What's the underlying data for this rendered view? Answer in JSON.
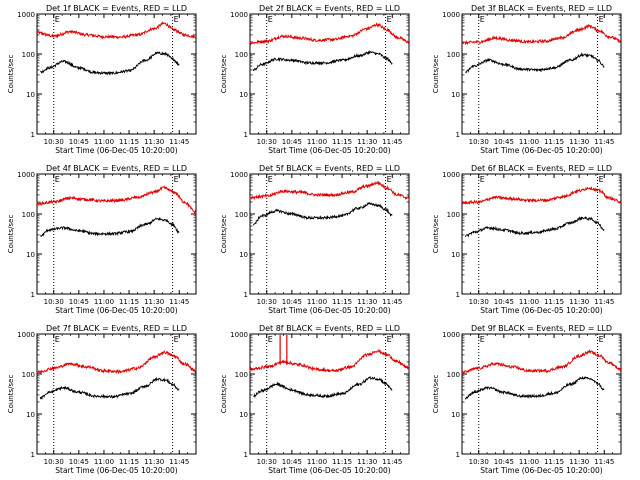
{
  "figure": {
    "xlabel": "Start Time (06-Dec-05 10:20:00)",
    "ylabel": "Counts/sec",
    "marker_label": "E",
    "colors": {
      "events": "#000000",
      "lld": "#e00000",
      "frame": "#000000",
      "background": "#ffffff"
    }
  },
  "chart_data": [
    {
      "type": "line",
      "title": "Det 1f BLACK = Events, RED = LLD",
      "xlabel": "Start Time (06-Dec-05 10:20:00)",
      "ylabel": "Counts/sec",
      "yscale": "log",
      "ylim": [
        1,
        1000
      ],
      "xlim": [
        "10:20",
        "11:55"
      ],
      "xticks": [
        "10:30",
        "10:45",
        "11:00",
        "11:15",
        "11:30",
        "11:45"
      ],
      "yticks": [
        "1",
        "10",
        "100",
        "1000"
      ],
      "markers": {
        "vlines": [
          "10:30",
          "11:41"
        ],
        "label": "E"
      },
      "series": [
        {
          "color": "#e00000",
          "x": [
            "10:20",
            "10:30",
            "10:40",
            "10:50",
            "11:00",
            "11:10",
            "11:20",
            "11:30",
            "11:36",
            "11:42",
            "11:48",
            "11:55"
          ],
          "values": [
            340,
            280,
            360,
            300,
            270,
            265,
            300,
            430,
            580,
            400,
            300,
            270
          ]
        },
        {
          "color": "#000000",
          "x": [
            "10:22",
            "10:27",
            "10:36",
            "10:45",
            "10:55",
            "11:05",
            "11:15",
            "11:25",
            "11:32",
            "11:37",
            "11:41",
            "11:45"
          ],
          "values": [
            35,
            45,
            65,
            45,
            34,
            33,
            38,
            70,
            105,
            100,
            75,
            55
          ]
        }
      ]
    },
    {
      "type": "line",
      "title": "Det 2f BLACK = Events, RED = LLD",
      "xlabel": "Start Time (06-Dec-05 10:20:00)",
      "ylabel": "Counts/sec",
      "yscale": "log",
      "ylim": [
        1,
        1000
      ],
      "xlim": [
        "10:20",
        "11:55"
      ],
      "xticks": [
        "10:30",
        "10:45",
        "11:00",
        "11:15",
        "11:30",
        "11:45"
      ],
      "yticks": [
        "1",
        "10",
        "100",
        "1000"
      ],
      "markers": {
        "vlines": [
          "10:30",
          "11:41"
        ],
        "label": "E"
      },
      "series": [
        {
          "color": "#e00000",
          "x": [
            "10:20",
            "10:30",
            "10:40",
            "10:50",
            "11:00",
            "11:10",
            "11:20",
            "11:30",
            "11:36",
            "11:42",
            "11:48",
            "11:55"
          ],
          "values": [
            190,
            210,
            280,
            250,
            220,
            230,
            280,
            430,
            540,
            400,
            260,
            200
          ]
        },
        {
          "color": "#000000",
          "x": [
            "10:22",
            "10:27",
            "10:36",
            "10:45",
            "10:55",
            "11:05",
            "11:15",
            "11:25",
            "11:32",
            "11:37",
            "11:41",
            "11:45"
          ],
          "values": [
            40,
            55,
            75,
            70,
            60,
            60,
            70,
            90,
            110,
            100,
            80,
            60
          ]
        }
      ]
    },
    {
      "type": "line",
      "title": "Det 3f BLACK = Events, RED = LLD",
      "xlabel": "Start Time (06-Dec-05 10:20:00)",
      "ylabel": "Counts/sec",
      "yscale": "log",
      "ylim": [
        1,
        1000
      ],
      "xlim": [
        "10:20",
        "11:55"
      ],
      "xticks": [
        "10:30",
        "10:45",
        "11:00",
        "11:15",
        "11:30",
        "11:45"
      ],
      "yticks": [
        "1",
        "10",
        "100",
        "1000"
      ],
      "markers": {
        "vlines": [
          "10:30",
          "11:41"
        ],
        "label": "E"
      },
      "series": [
        {
          "color": "#e00000",
          "x": [
            "10:20",
            "10:30",
            "10:40",
            "10:50",
            "11:00",
            "11:10",
            "11:20",
            "11:30",
            "11:36",
            "11:42",
            "11:48",
            "11:55"
          ],
          "values": [
            190,
            200,
            250,
            220,
            200,
            210,
            260,
            400,
            500,
            380,
            270,
            210
          ]
        },
        {
          "color": "#000000",
          "x": [
            "10:22",
            "10:27",
            "10:36",
            "10:45",
            "10:55",
            "11:05",
            "11:15",
            "11:25",
            "11:32",
            "11:37",
            "11:41",
            "11:45"
          ],
          "values": [
            35,
            50,
            70,
            55,
            42,
            40,
            45,
            70,
            95,
            90,
            70,
            50
          ]
        }
      ]
    },
    {
      "type": "line",
      "title": "Det 4f BLACK = Events, RED = LLD",
      "xlabel": "Start Time (06-Dec-05 10:20:00)",
      "ylabel": "Counts/sec",
      "yscale": "log",
      "ylim": [
        1,
        1000
      ],
      "xlim": [
        "10:20",
        "11:55"
      ],
      "xticks": [
        "10:30",
        "10:45",
        "11:00",
        "11:15",
        "11:30",
        "11:45"
      ],
      "yticks": [
        "1",
        "10",
        "100",
        "1000"
      ],
      "markers": {
        "vlines": [
          "10:30",
          "11:41"
        ],
        "label": "E"
      },
      "series": [
        {
          "color": "#e00000",
          "x": [
            "10:20",
            "10:30",
            "10:40",
            "10:50",
            "11:00",
            "11:10",
            "11:20",
            "11:30",
            "11:36",
            "11:42",
            "11:48",
            "11:55"
          ],
          "values": [
            180,
            200,
            250,
            230,
            210,
            220,
            260,
            350,
            450,
            350,
            200,
            110
          ]
        },
        {
          "color": "#000000",
          "x": [
            "10:22",
            "10:27",
            "10:36",
            "10:45",
            "10:55",
            "11:05",
            "11:15",
            "11:25",
            "11:32",
            "11:37",
            "11:41",
            "11:45"
          ],
          "values": [
            28,
            40,
            45,
            38,
            32,
            32,
            36,
            55,
            75,
            70,
            55,
            35
          ]
        }
      ]
    },
    {
      "type": "line",
      "title": "Det 5f BLACK = Events, RED = LLD",
      "xlabel": "Start Time (06-Dec-05 10:20:00)",
      "ylabel": "Counts/sec",
      "yscale": "log",
      "ylim": [
        1,
        1000
      ],
      "xlim": [
        "10:20",
        "11:55"
      ],
      "xticks": [
        "10:30",
        "10:45",
        "11:00",
        "11:15",
        "11:30",
        "11:45"
      ],
      "yticks": [
        "1",
        "10",
        "100",
        "1000"
      ],
      "markers": {
        "vlines": [
          "10:30",
          "11:41"
        ],
        "label": "E"
      },
      "series": [
        {
          "color": "#e00000",
          "x": [
            "10:20",
            "10:30",
            "10:40",
            "10:50",
            "11:00",
            "11:10",
            "11:20",
            "11:30",
            "11:36",
            "11:42",
            "11:48",
            "11:55"
          ],
          "values": [
            260,
            280,
            370,
            350,
            300,
            300,
            350,
            500,
            600,
            450,
            300,
            250
          ]
        },
        {
          "color": "#000000",
          "x": [
            "10:22",
            "10:27",
            "10:36",
            "10:45",
            "10:55",
            "11:05",
            "11:15",
            "11:25",
            "11:32",
            "11:37",
            "11:41",
            "11:45"
          ],
          "values": [
            55,
            90,
            120,
            100,
            80,
            80,
            90,
            140,
            180,
            160,
            130,
            90
          ]
        }
      ]
    },
    {
      "type": "line",
      "title": "Det 6f BLACK = Events, RED = LLD",
      "xlabel": "Start Time (06-Dec-05 10:20:00)",
      "ylabel": "Counts/sec",
      "yscale": "log",
      "ylim": [
        1,
        1000
      ],
      "xlim": [
        "10:20",
        "11:55"
      ],
      "xticks": [
        "10:30",
        "10:45",
        "11:00",
        "11:15",
        "11:30",
        "11:45"
      ],
      "yticks": [
        "1",
        "10",
        "100",
        "1000"
      ],
      "markers": {
        "vlines": [
          "10:30",
          "11:41"
        ],
        "label": "E"
      },
      "series": [
        {
          "color": "#e00000",
          "x": [
            "10:20",
            "10:30",
            "10:40",
            "10:50",
            "11:00",
            "11:10",
            "11:20",
            "11:30",
            "11:36",
            "11:42",
            "11:48",
            "11:55"
          ],
          "values": [
            190,
            200,
            260,
            240,
            220,
            220,
            270,
            380,
            450,
            380,
            250,
            200
          ]
        },
        {
          "color": "#000000",
          "x": [
            "10:22",
            "10:27",
            "10:36",
            "10:45",
            "10:55",
            "11:05",
            "11:15",
            "11:25",
            "11:32",
            "11:37",
            "11:41",
            "11:45"
          ],
          "values": [
            28,
            35,
            45,
            40,
            33,
            35,
            42,
            60,
            80,
            75,
            60,
            40
          ]
        }
      ]
    },
    {
      "type": "line",
      "title": "Det 7f BLACK = Events, RED = LLD",
      "xlabel": "Start Time (06-Dec-05 10:20:00)",
      "ylabel": "Counts/sec",
      "yscale": "log",
      "ylim": [
        1,
        1000
      ],
      "xlim": [
        "10:20",
        "11:55"
      ],
      "xticks": [
        "10:30",
        "10:45",
        "11:00",
        "11:15",
        "11:30",
        "11:45"
      ],
      "yticks": [
        "1",
        "10",
        "100",
        "1000"
      ],
      "markers": {
        "vlines": [
          "10:30",
          "11:41"
        ],
        "label": "E"
      },
      "series": [
        {
          "color": "#e00000",
          "x": [
            "10:20",
            "10:30",
            "10:40",
            "10:50",
            "11:00",
            "11:10",
            "11:20",
            "11:30",
            "11:36",
            "11:42",
            "11:48",
            "11:55"
          ],
          "values": [
            110,
            140,
            180,
            150,
            120,
            115,
            140,
            260,
            350,
            280,
            180,
            120
          ]
        },
        {
          "color": "#000000",
          "x": [
            "10:22",
            "10:27",
            "10:36",
            "10:45",
            "10:55",
            "11:05",
            "11:15",
            "11:25",
            "11:32",
            "11:37",
            "11:41",
            "11:45"
          ],
          "values": [
            25,
            35,
            45,
            35,
            28,
            27,
            32,
            50,
            75,
            70,
            55,
            40
          ]
        }
      ]
    },
    {
      "type": "line",
      "title": "Det 8f BLACK = Events, RED = LLD",
      "xlabel": "Start Time (06-Dec-05 10:20:00)",
      "ylabel": "Counts/sec",
      "yscale": "log",
      "ylim": [
        1,
        1000
      ],
      "xlim": [
        "10:20",
        "11:55"
      ],
      "xticks": [
        "10:30",
        "10:45",
        "11:00",
        "11:15",
        "11:30",
        "11:45"
      ],
      "yticks": [
        "1",
        "10",
        "100",
        "1000"
      ],
      "markers": {
        "vlines": [
          "10:30",
          "11:41"
        ],
        "label": "E",
        "spike_vlines": [
          "10:38",
          "10:42"
        ]
      },
      "series": [
        {
          "color": "#e00000",
          "x": [
            "10:20",
            "10:30",
            "10:40",
            "10:50",
            "11:00",
            "11:10",
            "11:20",
            "11:30",
            "11:36",
            "11:42",
            "11:48",
            "11:55"
          ],
          "values": [
            130,
            150,
            200,
            170,
            130,
            120,
            150,
            300,
            380,
            300,
            200,
            140
          ]
        },
        {
          "color": "#000000",
          "x": [
            "10:22",
            "10:27",
            "10:36",
            "10:45",
            "10:55",
            "11:05",
            "11:15",
            "11:25",
            "11:32",
            "11:37",
            "11:41",
            "11:45"
          ],
          "values": [
            28,
            38,
            55,
            40,
            30,
            28,
            32,
            55,
            80,
            75,
            58,
            40
          ]
        }
      ]
    },
    {
      "type": "line",
      "title": "Det 9f BLACK = Events, RED = LLD",
      "xlabel": "Start Time (06-Dec-05 10:20:00)",
      "ylabel": "Counts/sec",
      "yscale": "log",
      "ylim": [
        1,
        1000
      ],
      "xlim": [
        "10:20",
        "11:55"
      ],
      "xticks": [
        "10:30",
        "10:45",
        "11:00",
        "11:15",
        "11:30",
        "11:45"
      ],
      "yticks": [
        "1",
        "10",
        "100",
        "1000"
      ],
      "markers": {
        "vlines": [
          "10:30",
          "11:41"
        ],
        "label": "E"
      },
      "series": [
        {
          "color": "#e00000",
          "x": [
            "10:20",
            "10:30",
            "10:40",
            "10:50",
            "11:00",
            "11:10",
            "11:20",
            "11:30",
            "11:36",
            "11:42",
            "11:48",
            "11:55"
          ],
          "values": [
            110,
            140,
            180,
            150,
            120,
            120,
            150,
            280,
            360,
            290,
            190,
            130
          ]
        },
        {
          "color": "#000000",
          "x": [
            "10:22",
            "10:27",
            "10:36",
            "10:45",
            "10:55",
            "11:05",
            "11:15",
            "11:25",
            "11:32",
            "11:37",
            "11:41",
            "11:45"
          ],
          "values": [
            25,
            35,
            45,
            35,
            28,
            28,
            33,
            55,
            80,
            75,
            58,
            40
          ]
        }
      ]
    }
  ]
}
